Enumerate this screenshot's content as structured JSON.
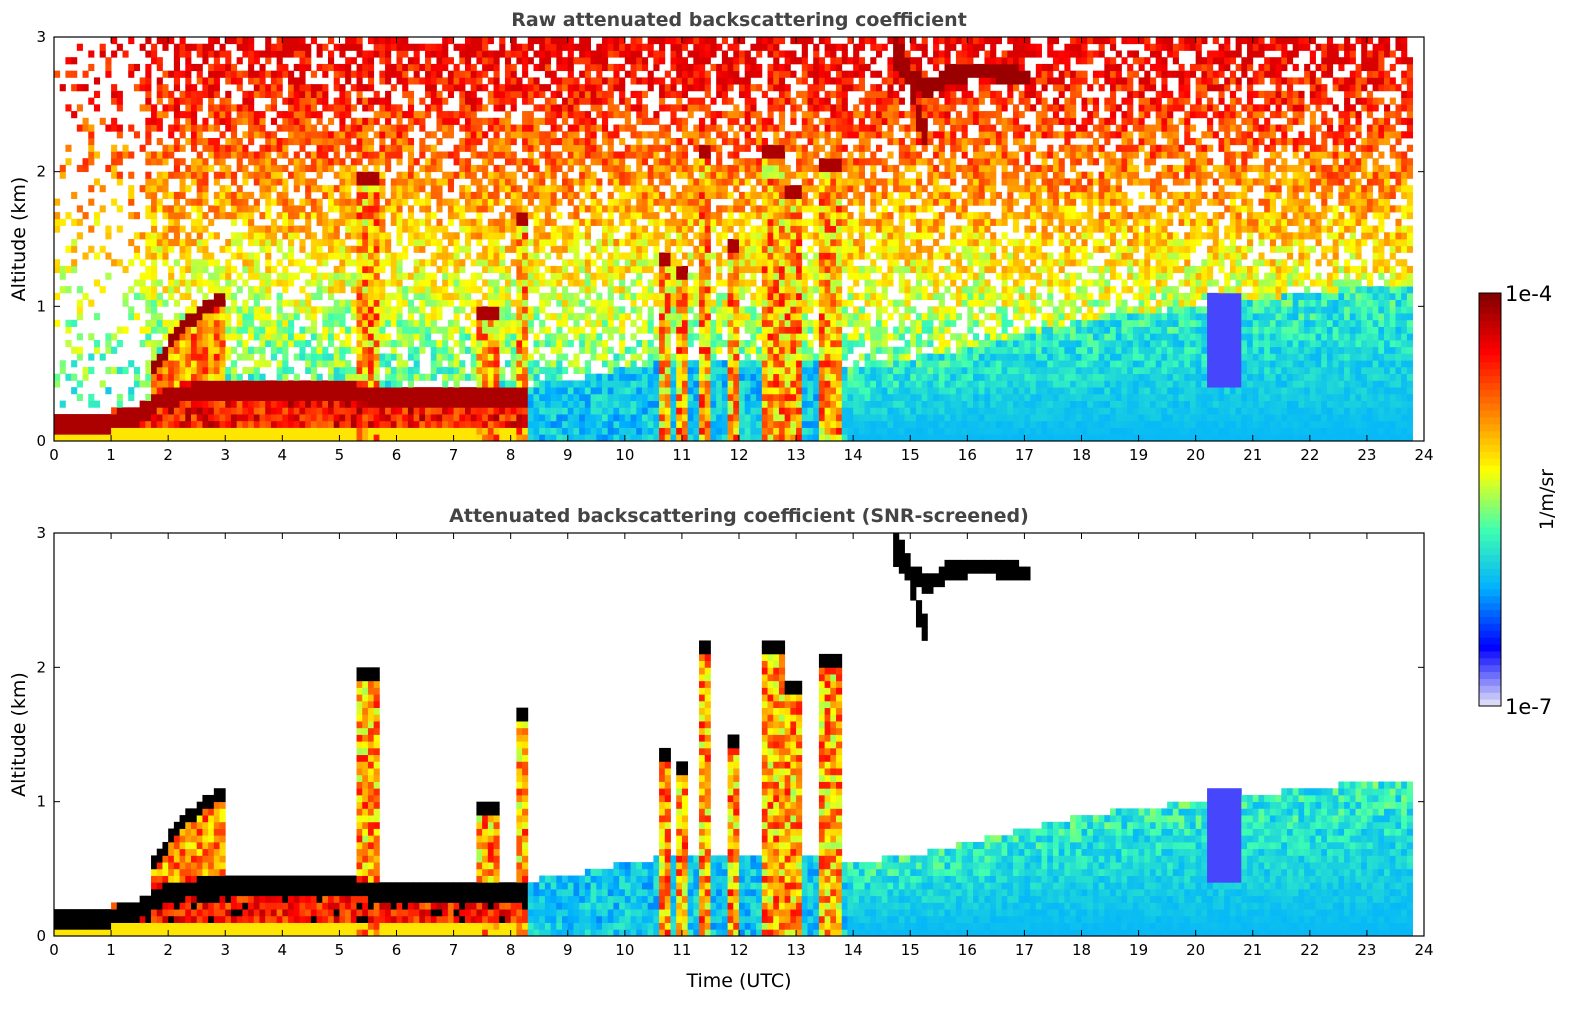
{
  "chart_data": [
    {
      "type": "heatmap",
      "title": "Raw attenuated backscattering coefficient",
      "xlabel": "",
      "ylabel": "Altitude (km)",
      "xlim": [
        0,
        24
      ],
      "ylim": [
        0,
        3
      ],
      "x_ticks": [
        "0",
        "1",
        "2",
        "3",
        "4",
        "5",
        "6",
        "7",
        "8",
        "9",
        "10",
        "11",
        "12",
        "13",
        "14",
        "15",
        "16",
        "17",
        "18",
        "19",
        "20",
        "21",
        "22",
        "23",
        "24"
      ],
      "y_ticks": [
        "0",
        "1",
        "2",
        "3"
      ],
      "screened": false
    },
    {
      "type": "heatmap",
      "title": "Attenuated backscattering coefficient (SNR-screened)",
      "xlabel": "Time (UTC)",
      "ylabel": "Altitude (km)",
      "xlim": [
        0,
        24
      ],
      "ylim": [
        0,
        3
      ],
      "x_ticks": [
        "0",
        "1",
        "2",
        "3",
        "4",
        "5",
        "6",
        "7",
        "8",
        "9",
        "10",
        "11",
        "12",
        "13",
        "14",
        "15",
        "16",
        "17",
        "18",
        "19",
        "20",
        "21",
        "22",
        "23",
        "24"
      ],
      "y_ticks": [
        "0",
        "1",
        "2",
        "3"
      ],
      "screened": true
    }
  ],
  "colorbar": {
    "label": "1/m/sr",
    "max_label": "1e-4",
    "min_label": "1e-7",
    "scale": "log",
    "colormap": "jet",
    "colors": [
      "#e8e8f8",
      "#0000ff",
      "#00b0ff",
      "#40ffb0",
      "#ffff00",
      "#ff8000",
      "#ff0000",
      "#800000"
    ]
  },
  "features": {
    "boundary_layer": [
      [
        0,
        0.22
      ],
      [
        1,
        0.22
      ],
      [
        1.5,
        0.28
      ],
      [
        2,
        0.42
      ],
      [
        3,
        0.45
      ],
      [
        4,
        0.46
      ],
      [
        5,
        0.45
      ],
      [
        6,
        0.4
      ],
      [
        7,
        0.42
      ],
      [
        8,
        0.4
      ],
      [
        9,
        0.45
      ],
      [
        10,
        0.55
      ],
      [
        11,
        0.6
      ],
      [
        12,
        0.62
      ],
      [
        13,
        0.62
      ],
      [
        14,
        0.55
      ],
      [
        15,
        0.6
      ],
      [
        16,
        0.7
      ],
      [
        17,
        0.8
      ],
      [
        18,
        0.9
      ],
      [
        19,
        0.95
      ],
      [
        20,
        1.0
      ],
      [
        21,
        1.05
      ],
      [
        22,
        1.1
      ],
      [
        23,
        1.15
      ],
      [
        23.8,
        1.15
      ]
    ],
    "aerosol_layer": [
      [
        1.8,
        0.55
      ],
      [
        2.2,
        0.85
      ],
      [
        2.9,
        1.05
      ]
    ],
    "plumes": [
      {
        "t": 5.5,
        "top": 2.0,
        "width": 0.45
      },
      {
        "t": 7.6,
        "top": 1.0,
        "width": 0.35
      },
      {
        "t": 8.2,
        "top": 1.7,
        "width": 0.25
      },
      {
        "t": 10.7,
        "top": 1.4,
        "width": 0.25
      },
      {
        "t": 11.0,
        "top": 1.3,
        "width": 0.2
      },
      {
        "t": 11.4,
        "top": 2.2,
        "width": 0.3
      },
      {
        "t": 11.9,
        "top": 1.5,
        "width": 0.3
      },
      {
        "t": 12.6,
        "top": 2.2,
        "width": 0.35
      },
      {
        "t": 13.0,
        "top": 1.9,
        "width": 0.3
      },
      {
        "t": 13.6,
        "top": 2.1,
        "width": 0.4
      }
    ],
    "cirrus": [
      [
        14.8,
        2.8
      ],
      [
        15.3,
        2.6
      ],
      [
        15.6,
        2.7
      ],
      [
        16.0,
        2.75
      ],
      [
        16.5,
        2.75
      ],
      [
        17.0,
        2.7
      ]
    ],
    "cirrus_fall": [
      [
        14.8,
        2.9
      ],
      [
        15.0,
        2.7
      ],
      [
        15.1,
        2.5
      ],
      [
        15.2,
        2.3
      ]
    ],
    "dry_intrusion": {
      "t": 20.5,
      "top": 1.1,
      "bottom": 0.4
    }
  }
}
